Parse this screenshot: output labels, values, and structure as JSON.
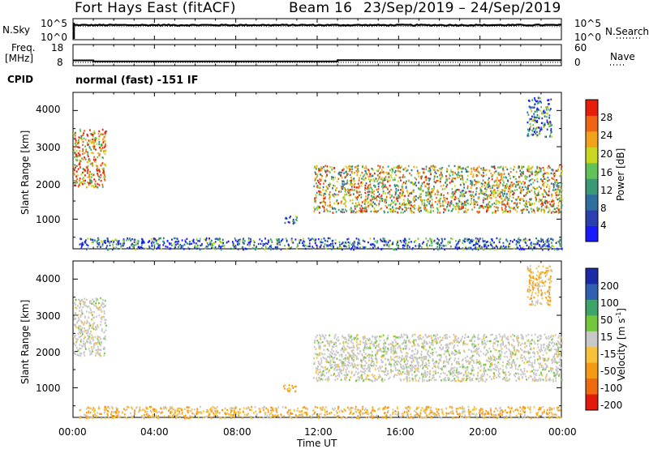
{
  "header": {
    "title": "Fort Hays East (fitACF)",
    "beam": "Beam 16",
    "dates": "23/Sep/2019 – 24/Sep/2019"
  },
  "colors": {
    "power": [
      "#1a1aff",
      "#2a3fb0",
      "#2f6fa0",
      "#3a9a78",
      "#62c25a",
      "#c8d81e",
      "#f2a21a",
      "#f06414",
      "#e81e0a"
    ],
    "velocity": [
      "#1c2aa8",
      "#2f5fb0",
      "#3da56a",
      "#72c83a",
      "#c8c8c8",
      "#f7c23a",
      "#f59a14",
      "#f06a10",
      "#e31a0a"
    ]
  },
  "panels": {
    "nsky": {
      "label": "N.Sky",
      "y_ticks": [
        "10^5",
        "10^0"
      ],
      "right_label": "N.Search",
      "right_ticks": [
        "10^5",
        "10^0"
      ]
    },
    "freq": {
      "label_line1": "Freq.",
      "label_line2": "[MHz]",
      "y_ticks": [
        "18",
        "8"
      ],
      "right_label": "Nave",
      "right_ticks": [
        "60",
        "0"
      ]
    },
    "cpid": {
      "label": "CPID",
      "text": "normal (fast) -151 IF"
    },
    "power": {
      "ylabel": "Slant Range [km]",
      "y_ticks": [
        "4000",
        "3000",
        "2000",
        "1000"
      ],
      "colorbar_label": "Power [dB]",
      "colorbar_ticks": [
        "28",
        "24",
        "20",
        "16",
        "12",
        "8",
        "4"
      ]
    },
    "velocity": {
      "ylabel": "Slant Range [km]",
      "y_ticks": [
        "4000",
        "3000",
        "2000",
        "1000"
      ],
      "colorbar_label": "Velocity [m s",
      "colorbar_label_sup": "-1",
      "colorbar_label_end": "]",
      "colorbar_ticks": [
        "200",
        "100",
        "50",
        "15",
        "-15",
        "-50",
        "-100",
        "-200"
      ]
    }
  },
  "xaxis": {
    "ticks": [
      "00:00",
      "04:00",
      "08:00",
      "12:00",
      "16:00",
      "20:00",
      "00:00"
    ],
    "label": "Time UT"
  },
  "chart_data": [
    {
      "type": "line",
      "panel": "N.Sky / N.Search",
      "y_scale": "log",
      "ylim": [
        1,
        100000
      ],
      "x": [
        "00:00",
        "24:00"
      ],
      "description_values": {
        "sky_level": 3000,
        "search_level": 1500
      }
    },
    {
      "type": "line",
      "panel": "Freq / Nave",
      "series": [
        {
          "name": "Freq.",
          "points": [
            [
              "00:00",
              10.5
            ],
            [
              "01:00",
              10.5
            ],
            [
              "01:00",
              10.0
            ],
            [
              "13:00",
              10.0
            ],
            [
              "13:00",
              10.6
            ],
            [
              "24:00",
              10.6
            ]
          ]
        },
        {
          "name": "Nave",
          "points": [
            [
              "00:00",
              18
            ],
            [
              "24:00",
              18
            ]
          ]
        }
      ],
      "ylim": [
        8,
        18
      ]
    },
    {
      "type": "heatmap",
      "panel": "Power [dB]",
      "x_range_hours": [
        0,
        24
      ],
      "ylim_km": [
        180,
        4500
      ],
      "colorbar_range": [
        0,
        30
      ],
      "echo_regions": [
        {
          "t_start": 0.0,
          "t_end": 1.6,
          "r_low": 1900,
          "r_high": 3500,
          "power": 22
        },
        {
          "t_start": 0.3,
          "t_end": 24.0,
          "r_low": 180,
          "r_high": 500,
          "power": 8
        },
        {
          "t_start": 10.3,
          "t_end": 11.0,
          "r_low": 900,
          "r_high": 1100,
          "power": 8
        },
        {
          "t_start": 11.8,
          "t_end": 24.0,
          "r_low": 1200,
          "r_high": 2500,
          "power": 18
        },
        {
          "t_start": 22.3,
          "t_end": 23.5,
          "r_low": 3300,
          "r_high": 4400,
          "power": 10
        }
      ]
    },
    {
      "type": "heatmap",
      "panel": "Velocity [m s-1]",
      "x_range_hours": [
        0,
        24
      ],
      "ylim_km": [
        180,
        4500
      ],
      "colorbar_range": [
        -250,
        250
      ],
      "echo_regions": [
        {
          "t_start": 0.0,
          "t_end": 1.6,
          "r_low": 1900,
          "r_high": 3500,
          "velocity": 0
        },
        {
          "t_start": 0.3,
          "t_end": 24.0,
          "r_low": 180,
          "r_high": 500,
          "velocity": -40
        },
        {
          "t_start": 10.3,
          "t_end": 11.0,
          "r_low": 900,
          "r_high": 1100,
          "velocity": -60
        },
        {
          "t_start": 11.8,
          "t_end": 24.0,
          "r_low": 1200,
          "r_high": 2500,
          "velocity": 0
        },
        {
          "t_start": 22.3,
          "t_end": 23.5,
          "r_low": 3300,
          "r_high": 4400,
          "velocity": -40
        }
      ]
    }
  ]
}
